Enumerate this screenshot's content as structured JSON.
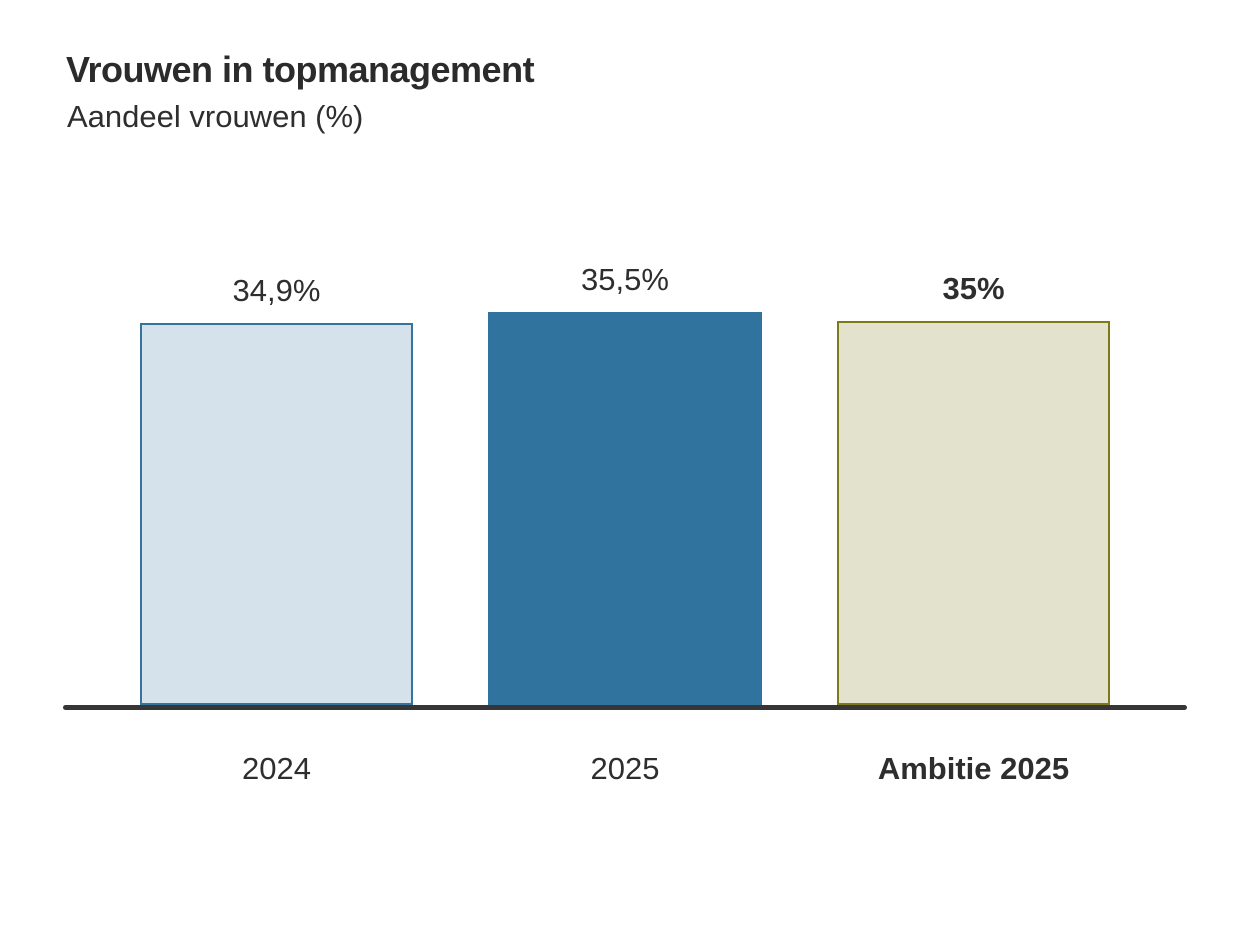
{
  "header": {
    "title": "Vrouwen in topmanagement",
    "subtitle": "Aandeel vrouwen (%)"
  },
  "chart_data": {
    "type": "bar",
    "title": "Vrouwen in topmanagement",
    "subtitle": "Aandeel vrouwen (%)",
    "categories": [
      "2024",
      "2025",
      "Ambitie 2025"
    ],
    "values": [
      34.9,
      35.5,
      35
    ],
    "value_labels": [
      "34,9%",
      "35,5%",
      "35%"
    ],
    "emphasized": [
      false,
      false,
      true
    ],
    "bar_styles": [
      {
        "fill": "#D5E2EC",
        "border": "#36749E"
      },
      {
        "fill": "#2F739E",
        "border": "#2F739E"
      },
      {
        "fill": "#E3E2CD",
        "border": "#7D7A1B"
      }
    ],
    "axis_color": "#363636",
    "text_color": "#2B2B2B",
    "grid": false,
    "legend": false,
    "y_axis_visible": false,
    "decimal_separator": ","
  }
}
